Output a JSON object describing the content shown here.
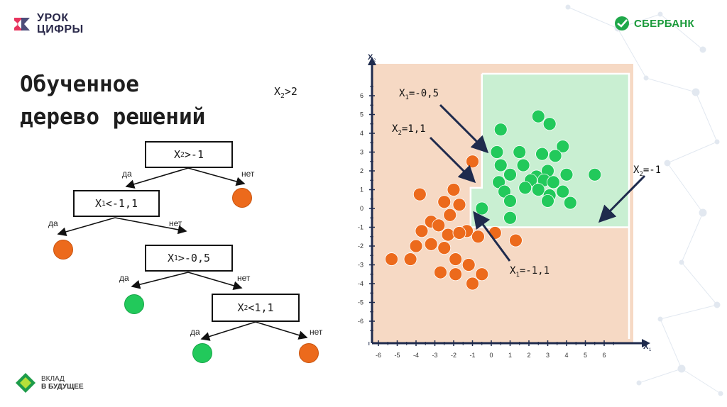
{
  "header": {
    "logo_left_line1": "УРОК",
    "logo_left_line2": "ЦИФРЫ",
    "logo_right": "СБЕРБАНК"
  },
  "title_line1": "Обученное",
  "title_line2": "дерево решений",
  "tree": {
    "root_condition_prefix": "X",
    "root_condition_sub": "2",
    "root_condition_suffix": ">2",
    "node1": {
      "prefix": "X",
      "sub": "2",
      "suffix": ">-1"
    },
    "node2": {
      "prefix": "X",
      "sub": "1",
      "suffix": "<-1,1"
    },
    "node3": {
      "prefix": "X",
      "sub": "1",
      "suffix": ">-0,5"
    },
    "node4": {
      "prefix": "X",
      "sub": "2",
      "suffix": "<1,1"
    },
    "yes": "да",
    "no": "нет"
  },
  "colors": {
    "orange": "#ec6a1c",
    "green": "#22c95b",
    "region_orange": "#f6d9c4",
    "region_green": "#c9efd2"
  },
  "chart_data": {
    "type": "scatter",
    "xlabel_main": "X",
    "xlabel_sub": "1",
    "ylabel_main": "X",
    "ylabel_sub": "2",
    "xlim": [
      -6.5,
      7
    ],
    "ylim": [
      -7,
      7
    ],
    "x_ticks": [
      -6,
      -5,
      -4,
      -3,
      -2,
      -1,
      0,
      1,
      2,
      3,
      4,
      5,
      6
    ],
    "y_ticks": [
      6,
      5,
      4,
      3,
      2,
      1,
      0,
      -1,
      -2,
      -3,
      -4,
      -5,
      -6
    ],
    "annotations": [
      {
        "prefix": "X",
        "sub": "1",
        "suffix": "=-0,5"
      },
      {
        "prefix": "X",
        "sub": "2",
        "suffix": "=1,1"
      },
      {
        "prefix": "X",
        "sub": "2",
        "suffix": "=-1"
      },
      {
        "prefix": "X",
        "sub": "1",
        "suffix": "=-1,1"
      }
    ],
    "series": [
      {
        "color": "#ec6a1c",
        "points": [
          [
            -1.0,
            2.5
          ],
          [
            -3.8,
            0.75
          ],
          [
            -2.0,
            1.0
          ],
          [
            -2.5,
            0.35
          ],
          [
            -1.7,
            0.2
          ],
          [
            -2.2,
            -0.35
          ],
          [
            -3.2,
            -0.7
          ],
          [
            -2.8,
            -0.9
          ],
          [
            -3.7,
            -1.2
          ],
          [
            -1.3,
            -1.2
          ],
          [
            -2.3,
            -1.4
          ],
          [
            -1.7,
            -1.3
          ],
          [
            -0.7,
            -1.5
          ],
          [
            0.2,
            -1.3
          ],
          [
            1.3,
            -1.7
          ],
          [
            -4.0,
            -2.0
          ],
          [
            -3.2,
            -1.9
          ],
          [
            -2.5,
            -2.1
          ],
          [
            -4.3,
            -2.7
          ],
          [
            -1.9,
            -2.7
          ],
          [
            -5.3,
            -2.7
          ],
          [
            -1.2,
            -3.0
          ],
          [
            -2.7,
            -3.4
          ],
          [
            -1.9,
            -3.5
          ],
          [
            -0.5,
            -3.5
          ],
          [
            -1.0,
            -4.0
          ]
        ]
      },
      {
        "color": "#22c95b",
        "points": [
          [
            0.5,
            4.2
          ],
          [
            2.5,
            4.9
          ],
          [
            3.1,
            4.5
          ],
          [
            0.3,
            3.0
          ],
          [
            1.5,
            3.0
          ],
          [
            3.8,
            3.3
          ],
          [
            2.7,
            2.9
          ],
          [
            3.4,
            2.8
          ],
          [
            0.5,
            2.3
          ],
          [
            1.0,
            1.8
          ],
          [
            1.7,
            2.3
          ],
          [
            2.4,
            1.7
          ],
          [
            3.0,
            2.0
          ],
          [
            2.8,
            1.5
          ],
          [
            4.0,
            1.8
          ],
          [
            5.5,
            1.8
          ],
          [
            0.4,
            1.4
          ],
          [
            2.1,
            1.5
          ],
          [
            3.3,
            1.4
          ],
          [
            0.7,
            0.9
          ],
          [
            1.8,
            1.1
          ],
          [
            2.5,
            1.0
          ],
          [
            3.1,
            0.7
          ],
          [
            3.8,
            0.9
          ],
          [
            1.0,
            0.4
          ],
          [
            3.0,
            0.4
          ],
          [
            4.2,
            0.3
          ],
          [
            -0.5,
            0.0
          ],
          [
            1.0,
            -0.5
          ]
        ]
      }
    ],
    "regions": [
      {
        "class": "green",
        "x_from": -0.5,
        "x_to": 6.5,
        "y_from": 1.1,
        "y_to": 7
      },
      {
        "class": "green",
        "x_from": -1.1,
        "x_to": 6.5,
        "y_from": -1,
        "y_to": 1.1
      }
    ]
  },
  "footer": {
    "line1": "ВКЛАД",
    "line2": "В БУДУЩЕЕ"
  }
}
